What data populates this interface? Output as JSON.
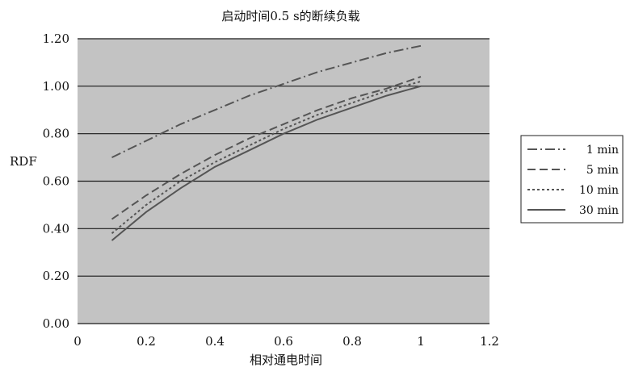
{
  "chart_data": {
    "type": "line",
    "title": "启动时间0.5 s的断续负载",
    "xlabel": "相对通电时间",
    "ylabel": "RDF",
    "xlim": [
      0,
      1.2
    ],
    "ylim": [
      0,
      1.2
    ],
    "x_ticks": [
      "0",
      "0.2",
      "0.4",
      "0.6",
      "0.8",
      "1",
      "1.2"
    ],
    "y_ticks": [
      "0.00",
      "0.20",
      "0.40",
      "0.60",
      "0.80",
      "1.00",
      "1.20"
    ],
    "grid": "horizontal",
    "legend_position": "right",
    "colors": {
      "plot_bg": "#c3c3c3",
      "line": "#555555",
      "grid": "#1a1a1a"
    },
    "series": [
      {
        "name": "1 min",
        "style": "dash-dot",
        "x": [
          0.1,
          0.2,
          0.3,
          0.4,
          0.5,
          0.6,
          0.7,
          0.8,
          0.9,
          1.0
        ],
        "y": [
          0.7,
          0.77,
          0.84,
          0.9,
          0.96,
          1.01,
          1.06,
          1.1,
          1.14,
          1.17
        ]
      },
      {
        "name": "5 min",
        "style": "dashed",
        "x": [
          0.1,
          0.2,
          0.3,
          0.4,
          0.5,
          0.6,
          0.7,
          0.8,
          0.9,
          1.0
        ],
        "y": [
          0.44,
          0.54,
          0.63,
          0.71,
          0.78,
          0.84,
          0.9,
          0.95,
          0.99,
          1.04
        ]
      },
      {
        "name": "10 min",
        "style": "dotted",
        "x": [
          0.1,
          0.2,
          0.3,
          0.4,
          0.5,
          0.6,
          0.7,
          0.8,
          0.9,
          1.0
        ],
        "y": [
          0.38,
          0.5,
          0.6,
          0.68,
          0.75,
          0.82,
          0.88,
          0.93,
          0.98,
          1.02
        ]
      },
      {
        "name": "30 min",
        "style": "solid",
        "x": [
          0.1,
          0.2,
          0.3,
          0.4,
          0.5,
          0.6,
          0.7,
          0.8,
          0.9,
          1.0
        ],
        "y": [
          0.35,
          0.47,
          0.57,
          0.66,
          0.73,
          0.8,
          0.86,
          0.91,
          0.96,
          1.0
        ]
      }
    ]
  }
}
